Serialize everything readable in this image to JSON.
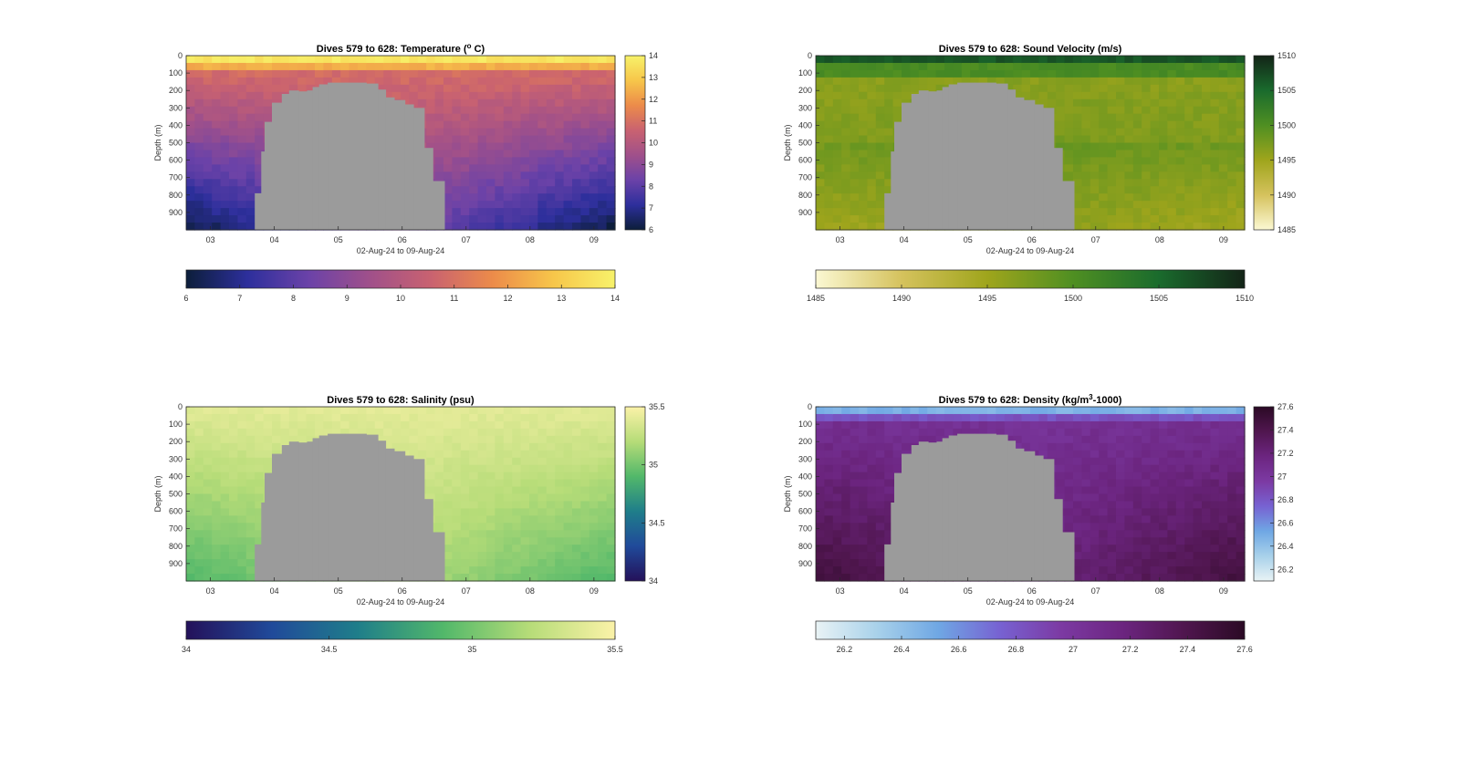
{
  "figure": {
    "shared": {
      "xlabel": "02-Aug-24 to 09-Aug-24",
      "ylabel": "Depth (m)",
      "x_ticks": [
        "03",
        "04",
        "05",
        "06",
        "07",
        "08",
        "09"
      ],
      "y_ticks": [
        "0",
        "100",
        "200",
        "300",
        "400",
        "500",
        "600",
        "700",
        "800",
        "900"
      ]
    },
    "panels": [
      {
        "id": "temperature",
        "title_prefix": "Dives 579 to 628: Temperature (",
        "title_sup": "o",
        "title_suffix": " C)",
        "colorbar_ticks": [
          "6",
          "7",
          "8",
          "9",
          "10",
          "11",
          "12",
          "13",
          "14"
        ],
        "colors": [
          "#0c1e3a",
          "#2d2f9c",
          "#6b42a8",
          "#a0508a",
          "#c96270",
          "#ec8b4a",
          "#f7c64a",
          "#f7f26a"
        ]
      },
      {
        "id": "sound-velocity",
        "title_prefix": "Dives 579 to 628: Sound Velocity (m/s)",
        "title_sup": "",
        "title_suffix": "",
        "colorbar_ticks": [
          "1485",
          "1490",
          "1495",
          "1500",
          "1505",
          "1510"
        ],
        "colors": [
          "#fbf8d3",
          "#d5c25d",
          "#9fa51c",
          "#4f8f22",
          "#1a6b2d",
          "#132417"
        ]
      },
      {
        "id": "salinity",
        "title_prefix": "Dives 579 to 628: Salinity (psu)",
        "title_sup": "",
        "title_suffix": "",
        "colorbar_ticks": [
          "34",
          "34.5",
          "35",
          "35.5"
        ],
        "colors": [
          "#24115a",
          "#204a9a",
          "#1f7e8a",
          "#52b86a",
          "#b6dc78",
          "#fbf2a8"
        ]
      },
      {
        "id": "density",
        "title_prefix": "Dives 579 to 628: Density (kg/m",
        "title_sup": "3",
        "title_suffix": "-1000)",
        "colorbar_ticks": [
          "26.2",
          "26.4",
          "26.6",
          "26.8",
          "27",
          "27.2",
          "27.4",
          "27.6"
        ],
        "colors": [
          "#e9f3f5",
          "#a8d1ea",
          "#6fa7e4",
          "#7762d2",
          "#7c3aa3",
          "#6c2580",
          "#50164f",
          "#2b0a25"
        ]
      }
    ]
  },
  "chart_data": [
    {
      "type": "heatmap",
      "title": "Dives 579 to 628: Temperature (o C)",
      "xlabel": "02-Aug-24 to 09-Aug-24",
      "ylabel": "Depth (m)",
      "x_range": [
        "02-Aug-24",
        "09-Aug-24"
      ],
      "ylim": [
        1000,
        0
      ],
      "colorbar_range": [
        6,
        14
      ],
      "profile_by_depth": {
        "depth": [
          0,
          50,
          100,
          200,
          400,
          600,
          800,
          1000
        ],
        "value": [
          13.5,
          12.5,
          11.0,
          10.5,
          10.2,
          9.6,
          8.6,
          7.6
        ]
      },
      "no_data": "gray region over seamount, approx. 04 to 07.5 Aug, below ~150-800 m"
    },
    {
      "type": "heatmap",
      "title": "Dives 579 to 628: Sound Velocity (m/s)",
      "xlabel": "02-Aug-24 to 09-Aug-24",
      "ylabel": "Depth (m)",
      "x_range": [
        "02-Aug-24",
        "09-Aug-24"
      ],
      "ylim": [
        1000,
        0
      ],
      "colorbar_range": [
        1485,
        1510
      ],
      "profile_by_depth": {
        "depth": [
          0,
          50,
          100,
          200,
          400,
          600,
          800,
          1000
        ],
        "value": [
          1506,
          1503,
          1497,
          1496,
          1498,
          1499,
          1497,
          1496
        ]
      },
      "no_data": "gray region over seamount, approx. 04 to 07.5 Aug"
    },
    {
      "type": "heatmap",
      "title": "Dives 579 to 628: Salinity (psu)",
      "xlabel": "02-Aug-24 to 09-Aug-24",
      "ylabel": "Depth (m)",
      "x_range": [
        "02-Aug-24",
        "09-Aug-24"
      ],
      "ylim": [
        1000,
        0
      ],
      "colorbar_range": [
        34,
        35.5
      ],
      "profile_by_depth": {
        "depth": [
          0,
          100,
          300,
          500,
          700,
          900,
          1000
        ],
        "value": [
          35.45,
          35.4,
          35.35,
          35.3,
          35.25,
          35.15,
          35.1
        ]
      },
      "no_data": "gray region over seamount, approx. 04 to 07.5 Aug"
    },
    {
      "type": "heatmap",
      "title": "Dives 579 to 628: Density (kg/m3-1000)",
      "xlabel": "02-Aug-24 to 09-Aug-24",
      "ylabel": "Depth (m)",
      "x_range": [
        "02-Aug-24",
        "09-Aug-24"
      ],
      "ylim": [
        1000,
        0
      ],
      "colorbar_range": [
        26.1,
        27.6
      ],
      "profile_by_depth": {
        "depth": [
          0,
          50,
          100,
          300,
          600,
          800,
          1000
        ],
        "value": [
          26.5,
          26.9,
          27.1,
          27.2,
          27.3,
          27.4,
          27.5
        ]
      },
      "no_data": "gray region over seamount, approx. 04 to 07.5 Aug"
    }
  ]
}
